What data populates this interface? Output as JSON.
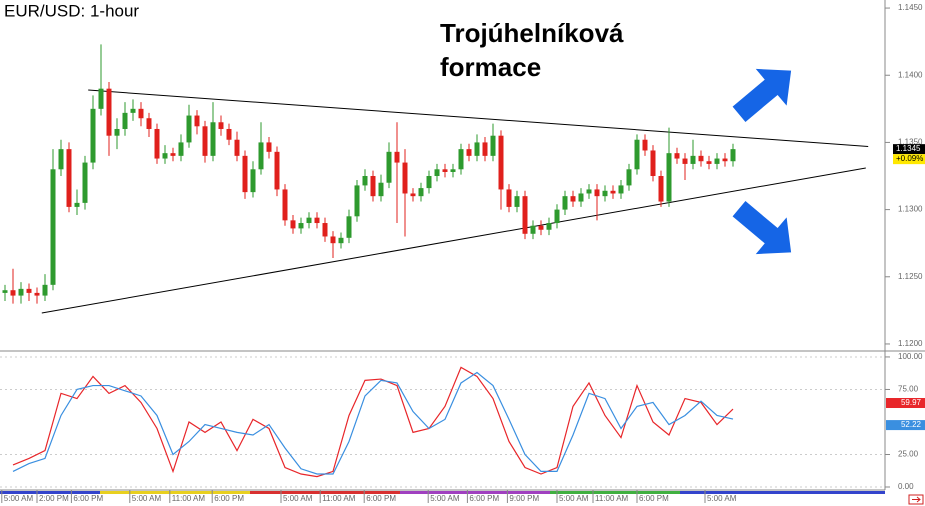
{
  "chart_data": [
    {
      "type": "candlestick",
      "title": "EUR/USD: 1-hour",
      "annotation": "Trojúhelníková formace",
      "up_color": "#2e9a2e",
      "down_color": "#e0201c",
      "xlim": [
        -0.625,
        110
      ],
      "ylim": [
        1.11955,
        1.1456
      ],
      "yticks": [
        {
          "value": 1.145,
          "label": "1.1450"
        },
        {
          "value": 1.14,
          "label": "1.1400"
        },
        {
          "value": 1.135,
          "label": "1.1350"
        },
        {
          "value": 1.13,
          "label": "1.1300"
        },
        {
          "value": 1.125,
          "label": "1.1250"
        },
        {
          "value": 1.12,
          "label": "1.1200"
        }
      ],
      "last_price": 1.1345,
      "change": {
        "value": 0.09,
        "label": "+0.09%"
      },
      "trendlines": [
        {
          "x": [
            10.4,
            107.9
          ],
          "y": [
            1.1389,
            1.1347
          ]
        },
        {
          "x": [
            4.6,
            107.6
          ],
          "y": [
            1.1223,
            1.1331
          ]
        }
      ],
      "ohlc": [
        [
          1.1238,
          1.1244,
          1.1232,
          1.124
        ],
        [
          1.124,
          1.1256,
          1.123,
          1.1236
        ],
        [
          1.1236,
          1.1246,
          1.123,
          1.1241
        ],
        [
          1.1241,
          1.1245,
          1.1232,
          1.1238
        ],
        [
          1.1238,
          1.1242,
          1.123,
          1.1236
        ],
        [
          1.1236,
          1.1252,
          1.1232,
          1.1244
        ],
        [
          1.1244,
          1.1345,
          1.124,
          1.133
        ],
        [
          1.133,
          1.1352,
          1.1325,
          1.1345
        ],
        [
          1.1345,
          1.135,
          1.1298,
          1.1302
        ],
        [
          1.1302,
          1.1315,
          1.1296,
          1.1305
        ],
        [
          1.1305,
          1.134,
          1.13,
          1.1335
        ],
        [
          1.1335,
          1.1385,
          1.133,
          1.1375
        ],
        [
          1.1375,
          1.1423,
          1.137,
          1.139
        ],
        [
          1.139,
          1.1395,
          1.134,
          1.1355
        ],
        [
          1.1355,
          1.1368,
          1.1345,
          1.136
        ],
        [
          1.136,
          1.138,
          1.1355,
          1.1372
        ],
        [
          1.1372,
          1.1382,
          1.1366,
          1.1375
        ],
        [
          1.1375,
          1.138,
          1.1362,
          1.1368
        ],
        [
          1.1368,
          1.1372,
          1.1354,
          1.136
        ],
        [
          1.136,
          1.1364,
          1.1334,
          1.1338
        ],
        [
          1.1338,
          1.1348,
          1.1334,
          1.1342
        ],
        [
          1.1342,
          1.1346,
          1.1336,
          1.134
        ],
        [
          1.134,
          1.1356,
          1.1336,
          1.135
        ],
        [
          1.135,
          1.1378,
          1.1346,
          1.137
        ],
        [
          1.137,
          1.1374,
          1.1356,
          1.1362
        ],
        [
          1.1362,
          1.1366,
          1.1335,
          1.134
        ],
        [
          1.134,
          1.138,
          1.1336,
          1.1365
        ],
        [
          1.1365,
          1.137,
          1.1355,
          1.136
        ],
        [
          1.136,
          1.1364,
          1.1348,
          1.1352
        ],
        [
          1.1352,
          1.1358,
          1.1336,
          1.134
        ],
        [
          1.134,
          1.1344,
          1.1308,
          1.1313
        ],
        [
          1.1313,
          1.1336,
          1.1309,
          1.133
        ],
        [
          1.133,
          1.1365,
          1.1326,
          1.135
        ],
        [
          1.135,
          1.1354,
          1.1338,
          1.1343
        ],
        [
          1.1343,
          1.1347,
          1.131,
          1.1315
        ],
        [
          1.1315,
          1.1319,
          1.1288,
          1.1292
        ],
        [
          1.1292,
          1.1296,
          1.1282,
          1.1286
        ],
        [
          1.1286,
          1.1294,
          1.1282,
          1.129
        ],
        [
          1.129,
          1.1298,
          1.1286,
          1.1294
        ],
        [
          1.1294,
          1.1298,
          1.1286,
          1.129
        ],
        [
          1.129,
          1.1294,
          1.1276,
          1.128
        ],
        [
          1.128,
          1.1284,
          1.1264,
          1.1275
        ],
        [
          1.1275,
          1.1283,
          1.1271,
          1.1279
        ],
        [
          1.1279,
          1.13,
          1.1275,
          1.1295
        ],
        [
          1.1295,
          1.1322,
          1.1291,
          1.1318
        ],
        [
          1.1318,
          1.133,
          1.1314,
          1.1325
        ],
        [
          1.1325,
          1.1329,
          1.1306,
          1.131
        ],
        [
          1.131,
          1.1326,
          1.1306,
          1.132
        ],
        [
          1.132,
          1.135,
          1.1316,
          1.1343
        ],
        [
          1.1343,
          1.1365,
          1.129,
          1.1335
        ],
        [
          1.1335,
          1.1345,
          1.128,
          1.1312
        ],
        [
          1.1312,
          1.1316,
          1.1306,
          1.131
        ],
        [
          1.131,
          1.132,
          1.1306,
          1.1316
        ],
        [
          1.1316,
          1.1329,
          1.1312,
          1.1325
        ],
        [
          1.1325,
          1.1334,
          1.1321,
          1.133
        ],
        [
          1.133,
          1.1334,
          1.1324,
          1.1328
        ],
        [
          1.1328,
          1.1334,
          1.1324,
          1.133
        ],
        [
          1.133,
          1.1349,
          1.1326,
          1.1345
        ],
        [
          1.1345,
          1.1349,
          1.1336,
          1.134
        ],
        [
          1.134,
          1.1356,
          1.1336,
          1.135
        ],
        [
          1.135,
          1.1354,
          1.1336,
          1.134
        ],
        [
          1.134,
          1.1364,
          1.1336,
          1.1355
        ],
        [
          1.1355,
          1.1359,
          1.13,
          1.1315
        ],
        [
          1.1315,
          1.1319,
          1.1298,
          1.1302
        ],
        [
          1.1302,
          1.1314,
          1.1298,
          1.131
        ],
        [
          1.131,
          1.1314,
          1.1278,
          1.1282
        ],
        [
          1.1282,
          1.1292,
          1.1278,
          1.1288
        ],
        [
          1.1288,
          1.1292,
          1.1281,
          1.1285
        ],
        [
          1.1285,
          1.1294,
          1.1281,
          1.129
        ],
        [
          1.129,
          1.1304,
          1.1286,
          1.13
        ],
        [
          1.13,
          1.1314,
          1.1296,
          1.131
        ],
        [
          1.131,
          1.1314,
          1.1302,
          1.1306
        ],
        [
          1.1306,
          1.1316,
          1.1302,
          1.1312
        ],
        [
          1.1312,
          1.1319,
          1.1308,
          1.1315
        ],
        [
          1.1315,
          1.1319,
          1.1292,
          1.131
        ],
        [
          1.131,
          1.1318,
          1.1306,
          1.1314
        ],
        [
          1.1314,
          1.1318,
          1.1308,
          1.1312
        ],
        [
          1.1312,
          1.1322,
          1.1308,
          1.1318
        ],
        [
          1.1318,
          1.1334,
          1.1314,
          1.133
        ],
        [
          1.133,
          1.1356,
          1.1326,
          1.1352
        ],
        [
          1.1352,
          1.1356,
          1.134,
          1.1344
        ],
        [
          1.1344,
          1.1348,
          1.1321,
          1.1325
        ],
        [
          1.1325,
          1.1329,
          1.1302,
          1.1306
        ],
        [
          1.1306,
          1.1361,
          1.1302,
          1.1342
        ],
        [
          1.1342,
          1.1346,
          1.1334,
          1.1338
        ],
        [
          1.1338,
          1.1342,
          1.1322,
          1.1334
        ],
        [
          1.1334,
          1.1352,
          1.133,
          1.134
        ],
        [
          1.134,
          1.1344,
          1.1332,
          1.1336
        ],
        [
          1.1336,
          1.134,
          1.133,
          1.1334
        ],
        [
          1.1334,
          1.1342,
          1.133,
          1.1338
        ],
        [
          1.1338,
          1.1342,
          1.1332,
          1.1336
        ],
        [
          1.1336,
          1.1349,
          1.1332,
          1.1345
        ]
      ]
    },
    {
      "type": "line",
      "xlim": [
        -0.625,
        110
      ],
      "ylim": [
        -2.3,
        103.8
      ],
      "yticks": [
        {
          "value": 100,
          "label": "100.00"
        },
        {
          "value": 75,
          "label": "75.00"
        },
        {
          "value": 25,
          "label": "25.00"
        },
        {
          "value": 0,
          "label": "0.00"
        }
      ],
      "xticks": [
        {
          "value": -0.4,
          "label": "5:00 AM"
        },
        {
          "value": 4,
          "label": "2:00 PM"
        },
        {
          "value": 8.3,
          "label": "6:00 PM"
        },
        {
          "value": 15.6,
          "label": "5:00 AM"
        },
        {
          "value": 20.6,
          "label": "11:00 AM"
        },
        {
          "value": 25.9,
          "label": "6:00 PM"
        },
        {
          "value": 34.5,
          "label": "5:00 AM"
        },
        {
          "value": 39.4,
          "label": "11:00 AM"
        },
        {
          "value": 44.9,
          "label": "6:00 PM"
        },
        {
          "value": 52.9,
          "label": "5:00 AM"
        },
        {
          "value": 57.8,
          "label": "6:00 PM"
        },
        {
          "value": 62.8,
          "label": "9:00 PM"
        },
        {
          "value": 69,
          "label": "5:00 AM"
        },
        {
          "value": 73.5,
          "label": "11:00 AM"
        },
        {
          "value": 79,
          "label": "6:00 PM"
        },
        {
          "value": 87.5,
          "label": "5:00 AM"
        }
      ],
      "x": [
        1,
        3,
        5,
        7,
        9,
        11,
        13,
        15,
        17,
        19,
        21,
        23,
        25,
        27,
        29,
        31,
        33,
        35,
        37,
        39,
        41,
        43,
        45,
        47,
        49,
        51,
        53,
        55,
        57,
        59,
        61,
        63,
        65,
        67,
        69,
        71,
        73,
        75,
        77,
        79,
        81,
        83,
        85,
        87,
        89,
        91
      ],
      "series": [
        {
          "color": "#e8262a",
          "values": [
            17,
            22,
            28,
            72,
            68,
            85,
            72,
            78,
            65,
            45,
            12,
            50,
            42,
            50,
            28,
            52,
            45,
            15,
            10,
            8,
            12,
            55,
            82,
            83,
            78,
            42,
            45,
            62,
            92,
            85,
            68,
            35,
            15,
            10,
            15,
            62,
            80,
            55,
            38,
            78,
            50,
            40,
            68,
            65,
            48,
            59.97
          ]
        },
        {
          "color": "#3a8fe0",
          "values": [
            12,
            18,
            22,
            55,
            75,
            78,
            78,
            74,
            70,
            55,
            25,
            35,
            48,
            45,
            42,
            40,
            48,
            30,
            14,
            10,
            10,
            35,
            70,
            82,
            80,
            58,
            45,
            52,
            80,
            88,
            78,
            52,
            25,
            12,
            12,
            40,
            72,
            68,
            45,
            62,
            65,
            48,
            55,
            66,
            55,
            52.22
          ]
        }
      ]
    }
  ]
}
